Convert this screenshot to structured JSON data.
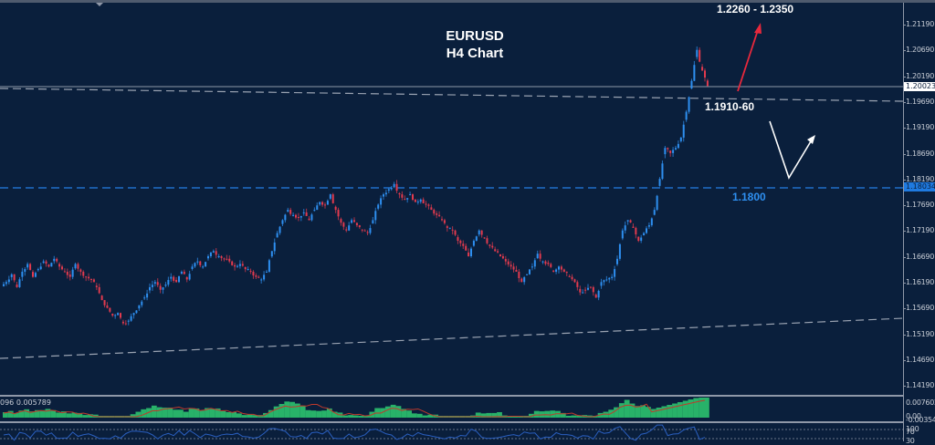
{
  "chart_data": {
    "type": "candlestick",
    "title": "EURUSD",
    "subtitle": "H4 Chart",
    "symbol": "EURUSD",
    "timeframe": "H4",
    "ylim": [
      1.139,
      1.215
    ],
    "y_ticks": [
      "1.21190",
      "1.20690",
      "1.20190",
      "1.19690",
      "1.19190",
      "1.18690",
      "1.18190",
      "1.17690",
      "1.17190",
      "1.16690",
      "1.16190",
      "1.15690",
      "1.15190",
      "1.14690",
      "1.14190"
    ],
    "current_price": "1.20023",
    "level_price": "1.18034",
    "annotations": [
      {
        "text": "1.2260 - 1.2350",
        "type": "target",
        "color": "#ffffff"
      },
      {
        "text": "1.1910-60",
        "type": "support",
        "color": "#ffffff"
      },
      {
        "text": "1.1800",
        "type": "support",
        "color": "#2e8ff0"
      }
    ],
    "close_path": [
      1.162,
      1.1635,
      1.161,
      1.164,
      1.1655,
      1.163,
      1.1645,
      1.166,
      1.165,
      1.1665,
      1.165,
      1.164,
      1.163,
      1.1655,
      1.164,
      1.163,
      1.1625,
      1.161,
      1.1585,
      1.157,
      1.1555,
      1.156,
      1.154,
      1.1545,
      1.156,
      1.1575,
      1.159,
      1.161,
      1.162,
      1.1605,
      1.1615,
      1.163,
      1.162,
      1.164,
      1.1625,
      1.165,
      1.166,
      1.165,
      1.167,
      1.168,
      1.167,
      1.1665,
      1.166,
      1.165,
      1.1655,
      1.1645,
      1.164,
      1.163,
      1.1625,
      1.164,
      1.168,
      1.1715,
      1.174,
      1.176,
      1.175,
      1.1745,
      1.1755,
      1.174,
      1.176,
      1.1775,
      1.177,
      1.179,
      1.176,
      1.1735,
      1.172,
      1.174,
      1.173,
      1.172,
      1.1715,
      1.174,
      1.177,
      1.179,
      1.18,
      1.181,
      1.179,
      1.178,
      1.179,
      1.1775,
      1.178,
      1.177,
      1.176,
      1.175,
      1.174,
      1.1725,
      1.172,
      1.17,
      1.169,
      1.167,
      1.17,
      1.172,
      1.1705,
      1.169,
      1.168,
      1.167,
      1.166,
      1.165,
      1.164,
      1.162,
      1.1635,
      1.165,
      1.1675,
      1.166,
      1.1655,
      1.164,
      1.165,
      1.164,
      1.163,
      1.162,
      1.16,
      1.1605,
      1.161,
      1.159,
      1.162,
      1.1625,
      1.163,
      1.1665,
      1.172,
      1.174,
      1.1725,
      1.17,
      1.1715,
      1.173,
      1.176,
      1.182,
      1.188,
      1.187,
      1.188,
      1.19,
      1.195,
      1.201,
      1.207,
      1.203,
      1.2
    ]
  },
  "indicators": {
    "macd_label": "096 0.005789",
    "macd_axis_top": "0.007602",
    "macd_axis_zero": "0.00",
    "macd_axis_neg": "-0.003542",
    "rsi_axis_100": "100",
    "rsi_axis_70": "70",
    "rsi_axis_30": "30"
  },
  "colors": {
    "background": "#0a1f3c",
    "bull": "#2e8ff0",
    "bear": "#e23a4e",
    "target_arrow": "#e8283c",
    "scenario_arrow": "#ffffff",
    "level_line": "#1f6fc8",
    "macd_hist": "#2ecc71",
    "macd_signal": "#c0392b"
  }
}
